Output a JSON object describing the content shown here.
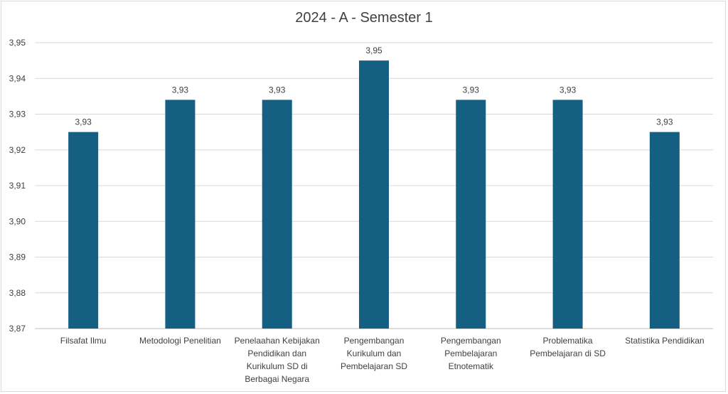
{
  "chart_data": {
    "type": "bar",
    "title": "2024 - A - Semester 1",
    "xlabel": "",
    "ylabel": "",
    "ylim": [
      3.87,
      3.95
    ],
    "yticks": [
      "3,87",
      "3,88",
      "3,89",
      "3,90",
      "3,91",
      "3,92",
      "3,93",
      "3,94",
      "3,95"
    ],
    "grid": true,
    "legend": "none",
    "bar_color": "#145f82",
    "categories": [
      [
        "Filsafat Ilmu"
      ],
      [
        "Metodologi Penelitian"
      ],
      [
        "Penelaahan Kebijakan",
        "Pendidikan dan",
        "Kurikulum SD di",
        "Berbagai Negara"
      ],
      [
        "Pengembangan",
        "Kurikulum dan",
        "Pembelajaran SD"
      ],
      [
        "Pengembangan",
        "Pembelajaran",
        "Etnotematik"
      ],
      [
        "Problematika",
        "Pembelajaran di SD"
      ],
      [
        "Statistika Pendidikan"
      ]
    ],
    "values": [
      3.925,
      3.934,
      3.934,
      3.945,
      3.934,
      3.934,
      3.925
    ],
    "data_labels": [
      "3,93",
      "3,93",
      "3,93",
      "3,95",
      "3,93",
      "3,93",
      "3,93"
    ]
  }
}
